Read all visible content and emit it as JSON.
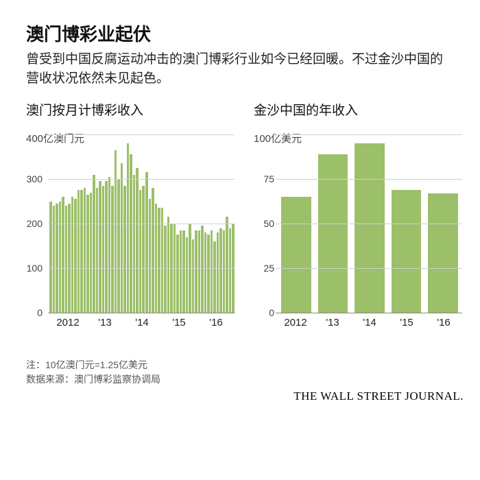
{
  "title": "澳门博彩业起伏",
  "subtitle": "曾受到中国反腐运动冲击的澳门博彩行业如今已经回暖。不过金沙中国的营收状况依然未见起色。",
  "footnote1": "注：10亿澳门元=1.25亿美元",
  "footnote2": "数据来源：澳门博彩监察协调局",
  "credit": "THE WALL STREET JOURNAL.",
  "colors": {
    "bar": "#9cbf6a",
    "grid": "#d0d0d0",
    "baseline": "#888888",
    "background": "#ffffff"
  },
  "left_chart": {
    "type": "bar",
    "title": "澳门按月计博彩收入",
    "y_unit_label": "400亿澳门元",
    "ylim": [
      0,
      400
    ],
    "yticks": [
      0,
      100,
      200,
      300,
      400
    ],
    "ytick_labels": [
      "0",
      "100",
      "200",
      "300"
    ],
    "x_labels": [
      "2012",
      "'13",
      "'14",
      "'15",
      "'16"
    ],
    "values": [
      250,
      240,
      245,
      250,
      260,
      240,
      245,
      260,
      255,
      275,
      275,
      280,
      265,
      270,
      310,
      280,
      295,
      285,
      295,
      305,
      285,
      365,
      300,
      335,
      285,
      380,
      355,
      310,
      325,
      275,
      285,
      315,
      255,
      280,
      245,
      235,
      235,
      195,
      215,
      200,
      200,
      175,
      185,
      185,
      170,
      200,
      165,
      185,
      185,
      195,
      180,
      175,
      185,
      160,
      180,
      190,
      185,
      215,
      190,
      200
    ],
    "bar_color": "#9cbf6a",
    "grid_color": "#d0d0d0",
    "label_fontsize": 15,
    "title_fontsize": 19
  },
  "right_chart": {
    "type": "bar",
    "title": "金沙中国的年收入",
    "y_unit_label": "100亿美元",
    "ylim": [
      0,
      100
    ],
    "yticks": [
      0,
      25,
      50,
      75,
      100
    ],
    "ytick_labels": [
      "0",
      "25",
      "50",
      "75"
    ],
    "x_labels": [
      "2012",
      "'13",
      "'14",
      "'15",
      "'16"
    ],
    "values": [
      65,
      89,
      95,
      69,
      67
    ],
    "bar_color": "#9cbf6a",
    "grid_color": "#d0d0d0",
    "label_fontsize": 15,
    "title_fontsize": 19
  }
}
